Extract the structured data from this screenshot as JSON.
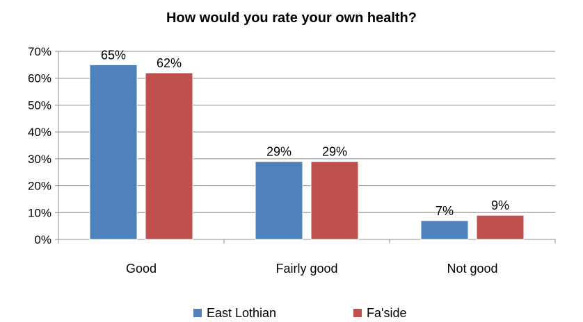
{
  "chart_data": {
    "type": "bar",
    "title": "How would you rate your own health?",
    "categories": [
      "Good",
      "Fairly good",
      "Not good"
    ],
    "series": [
      {
        "name": "East Lothian",
        "color": "#4f81bd",
        "values": [
          65,
          29,
          7
        ],
        "labels": [
          "65%",
          "29%",
          "7%"
        ]
      },
      {
        "name": "Fa'side",
        "color": "#c0504d",
        "values": [
          62,
          29,
          9
        ],
        "labels": [
          "62%",
          "29%",
          "9%"
        ]
      }
    ],
    "ylim": [
      0,
      70
    ],
    "yticks": [
      0,
      10,
      20,
      30,
      40,
      50,
      60,
      70
    ],
    "ytick_labels": [
      "0%",
      "10%",
      "20%",
      "30%",
      "40%",
      "50%",
      "60%",
      "70%"
    ],
    "xlabel": "",
    "ylabel": "",
    "grid": true,
    "legend_position": "bottom"
  }
}
